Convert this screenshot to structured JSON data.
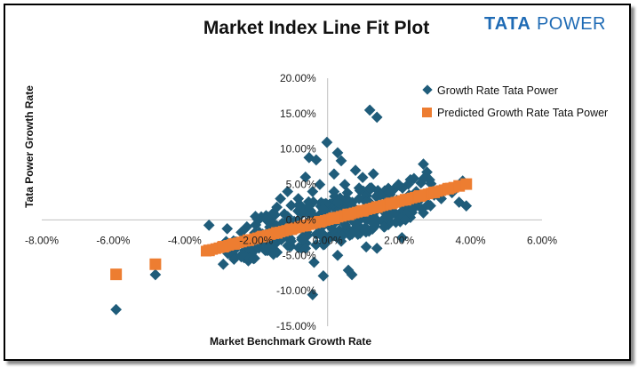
{
  "header": {
    "logo_text_bold": "TATA",
    "logo_text_rest": "POWER"
  },
  "colors": {
    "actual": "#1f5c7a",
    "predicted": "#ed7d31",
    "logo": "#1f6bb5"
  },
  "chart_data": {
    "type": "scatter",
    "title": "Market Index Line Fit Plot",
    "xlabel": "Market Benchmark Growth Rate",
    "ylabel": "Tata Power Growth Rate",
    "xlim": [
      -0.08,
      0.06
    ],
    "ylim": [
      -0.15,
      0.2
    ],
    "x_ticks": [
      "-8.00%",
      "-6.00%",
      "-4.00%",
      "-2.00%",
      "0.00%",
      "2.00%",
      "4.00%",
      "6.00%"
    ],
    "y_ticks": [
      "20.00%",
      "15.00%",
      "10.00%",
      "5.00%",
      "0.00%",
      "-5.00%",
      "-10.00%",
      "-15.00%"
    ],
    "grid": false,
    "legend_position": "top-right",
    "trend": {
      "slope": 1.3,
      "intercept": 0.0002
    },
    "series": [
      {
        "name": "Growth Rate Tata Power",
        "marker": "diamond",
        "points": [
          [
            -0.0592,
            -0.1265
          ],
          [
            -0.0482,
            -0.0772
          ],
          [
            -0.0332,
            -0.0075
          ],
          [
            -0.0292,
            -0.0625
          ],
          [
            -0.0262,
            -0.0555
          ],
          [
            -0.0242,
            -0.0498
          ],
          [
            -0.0222,
            -0.04
          ],
          [
            -0.0192,
            -0.032
          ],
          [
            -0.0172,
            0.0005
          ],
          [
            -0.0152,
            -0.029
          ],
          [
            -0.0122,
            -0.015
          ],
          [
            -0.0102,
            0.0205
          ],
          [
            -0.0082,
            0.03
          ],
          [
            -0.0062,
            0.0605
          ],
          [
            -0.0052,
            0.088
          ],
          [
            -0.0032,
            0.0848
          ],
          [
            -0.0022,
            0.05
          ],
          [
            -0.0012,
            -0.079
          ],
          [
            -0.0002,
            0.1095
          ],
          [
            0.0018,
            0.0648
          ],
          [
            0.0028,
            -0.05
          ],
          [
            0.0038,
            0.0835
          ],
          [
            0.0058,
            -0.071
          ],
          [
            0.0068,
            -0.0772
          ],
          [
            -0.0038,
            -0.0598
          ],
          [
            -0.0042,
            -0.1055
          ],
          [
            0.0028,
            0.0948
          ],
          [
            0.0078,
            0.07
          ],
          [
            0.0098,
            0.06
          ],
          [
            0.0118,
            0.155
          ],
          [
            0.0138,
            0.145
          ],
          [
            0.0128,
            0.065
          ],
          [
            0.0148,
            0.035
          ],
          [
            0.0168,
            0.03
          ],
          [
            0.0188,
            0.01
          ],
          [
            0.0208,
            -0.025
          ],
          [
            0.0228,
            0.035
          ],
          [
            0.0248,
            0.02
          ],
          [
            0.0268,
            0.01
          ],
          [
            0.0288,
            0.02
          ],
          [
            0.0318,
            0.03
          ],
          [
            0.0348,
            0.0385
          ],
          [
            0.0368,
            0.025
          ],
          [
            0.0388,
            0.0198
          ],
          [
            0.0378,
            0.055
          ],
          [
            0.0268,
            0.0788
          ],
          [
            0.0278,
            0.0675
          ],
          [
            0.0198,
            0.05
          ],
          [
            0.0138,
            -0.04
          ],
          [
            0.0108,
            -0.038
          ],
          [
            -0.0142,
            0.018
          ],
          [
            -0.0112,
            0.005
          ],
          [
            -0.0092,
            -0.005
          ],
          [
            -0.0072,
            0.01
          ],
          [
            -0.0052,
            0.02
          ],
          [
            -0.0032,
            0.0
          ],
          [
            -0.0012,
            0.015
          ],
          [
            0.0008,
            -0.01
          ],
          [
            0.0028,
            0.025
          ],
          [
            0.0048,
            0.015
          ],
          [
            0.0068,
            -0.02
          ],
          [
            0.0088,
            0.03
          ],
          [
            0.0108,
            0.025
          ],
          [
            0.0128,
            -0.005
          ],
          [
            0.0158,
            0.02
          ],
          [
            0.0178,
            0.04
          ],
          [
            -0.0182,
            -0.02
          ],
          [
            -0.0162,
            -0.01
          ],
          [
            -0.0132,
            0.03
          ],
          [
            -0.0102,
            -0.03
          ],
          [
            -0.0072,
            -0.025
          ],
          [
            -0.0042,
            0.04
          ],
          [
            -0.0022,
            -0.02
          ],
          [
            0.0018,
            0.04
          ],
          [
            0.0038,
            -0.03
          ],
          [
            0.0058,
            0.005
          ],
          [
            0.0078,
            -0.005
          ],
          [
            0.0098,
            0.01
          ],
          [
            0.0118,
            0.045
          ],
          [
            0.0158,
            -0.01
          ],
          [
            0.0218,
            0.0
          ],
          [
            0.0238,
            0.015
          ],
          [
            -0.0112,
            0.04
          ],
          [
            -0.0062,
            -0.04
          ],
          [
            -0.0202,
            0.005
          ],
          [
            -0.0232,
            -0.028
          ],
          [
            -0.0012,
            -0.035
          ],
          [
            0.0048,
            0.05
          ],
          [
            0.0088,
            0.045
          ],
          [
            0.0108,
            0.0
          ],
          [
            0.0138,
            0.015
          ],
          [
            0.0168,
            0.005
          ],
          [
            0.0198,
            0.025
          ],
          [
            0.0218,
            0.03
          ],
          [
            0.0248,
            0.04
          ],
          [
            0.0298,
            0.035
          ],
          [
            -0.0152,
            0.01
          ],
          [
            -0.0042,
            0.005
          ],
          [
            0.0018,
            -0.005
          ],
          [
            0.0068,
            0.02
          ]
        ]
      },
      {
        "name": "Predicted Growth Rate Tata Power",
        "marker": "square",
        "points": [
          [
            -0.0592,
            -0.0768
          ],
          [
            -0.0482,
            -0.0625
          ],
          [
            -0.0332,
            -0.043
          ],
          [
            -0.0292,
            -0.0378
          ],
          [
            -0.0262,
            -0.0339
          ],
          [
            -0.0222,
            -0.0287
          ],
          [
            -0.0182,
            -0.0235
          ],
          [
            -0.0142,
            -0.0183
          ],
          [
            -0.0102,
            -0.0131
          ],
          [
            -0.0062,
            -0.0079
          ],
          [
            -0.0022,
            -0.0027
          ],
          [
            0.0018,
            0.0025
          ],
          [
            0.0058,
            0.0077
          ],
          [
            0.0098,
            0.0129
          ],
          [
            0.0138,
            0.0181
          ],
          [
            0.0178,
            0.0233
          ],
          [
            0.0218,
            0.0285
          ],
          [
            0.0258,
            0.0337
          ],
          [
            0.0298,
            0.0389
          ],
          [
            0.0338,
            0.0441
          ],
          [
            0.0368,
            0.048
          ],
          [
            0.0388,
            0.0506
          ]
        ]
      }
    ]
  }
}
